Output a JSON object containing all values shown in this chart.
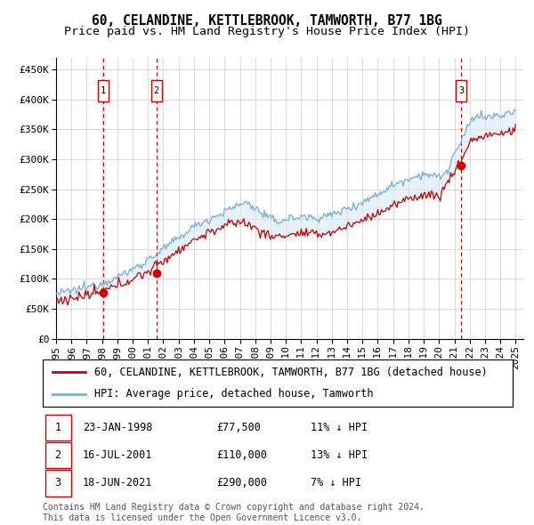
{
  "title1": "60, CELANDINE, KETTLEBROOK, TAMWORTH, B77 1BG",
  "title2": "Price paid vs. HM Land Registry's House Price Index (HPI)",
  "xlim_start": 1995.0,
  "xlim_end": 2025.5,
  "ylim": [
    0,
    470000
  ],
  "yticks": [
    0,
    50000,
    100000,
    150000,
    200000,
    250000,
    300000,
    350000,
    400000,
    450000
  ],
  "ytick_labels": [
    "£0",
    "£50K",
    "£100K",
    "£150K",
    "£200K",
    "£250K",
    "£300K",
    "£350K",
    "£400K",
    "£450K"
  ],
  "xtick_years": [
    1995,
    1996,
    1997,
    1998,
    1999,
    2000,
    2001,
    2002,
    2003,
    2004,
    2005,
    2006,
    2007,
    2008,
    2009,
    2010,
    2011,
    2012,
    2013,
    2014,
    2015,
    2016,
    2017,
    2018,
    2019,
    2020,
    2021,
    2022,
    2023,
    2024,
    2025
  ],
  "hpi_color": "#7bafd4",
  "price_color": "#cc0000",
  "vline_color": "#cc0000",
  "bg_fill_color": "#d6e8f5",
  "grid_color": "#cccccc",
  "sale_dates": [
    1998.06,
    2001.54,
    2021.46
  ],
  "sale_prices": [
    77500,
    110000,
    290000
  ],
  "sale_labels": [
    "1",
    "2",
    "3"
  ],
  "legend_label_red": "60, CELANDINE, KETTLEBROOK, TAMWORTH, B77 1BG (detached house)",
  "legend_label_blue": "HPI: Average price, detached house, Tamworth",
  "table_entries": [
    {
      "label": "1",
      "date": "23-JAN-1998",
      "price": "£77,500",
      "hpi": "11% ↓ HPI"
    },
    {
      "label": "2",
      "date": "16-JUL-2001",
      "price": "£110,000",
      "hpi": "13% ↓ HPI"
    },
    {
      "label": "3",
      "date": "18-JUN-2021",
      "price": "£290,000",
      "hpi": "7% ↓ HPI"
    }
  ],
  "footnote": "Contains HM Land Registry data © Crown copyright and database right 2024.\nThis data is licensed under the Open Government Licence v3.0.",
  "title_fontsize": 10.5,
  "subtitle_fontsize": 9.5,
  "tick_fontsize": 8,
  "legend_fontsize": 8.5,
  "table_fontsize": 8.5,
  "footnote_fontsize": 7
}
